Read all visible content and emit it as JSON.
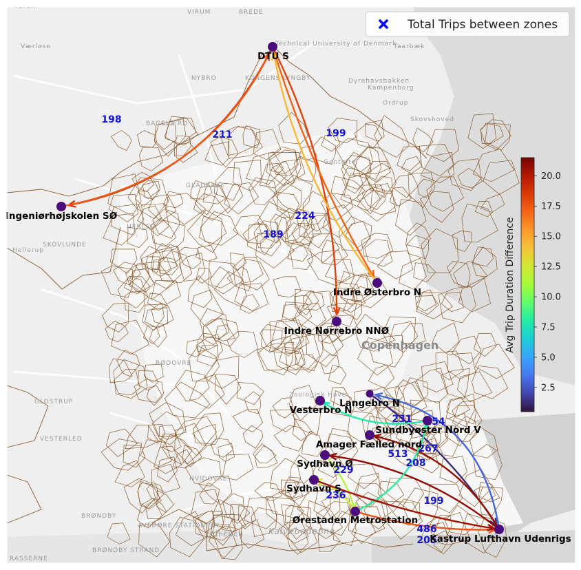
{
  "legend": {
    "label": "Total Trips between zones",
    "marker": "x-cross",
    "color": "#0000ff"
  },
  "colorbar": {
    "title": "Avg Trip Duration Difference",
    "ticks": [
      "2.5",
      "5.0",
      "7.5",
      "10.0",
      "12.5",
      "15.0",
      "17.5",
      "20.0"
    ],
    "colormap": "turbo"
  },
  "basemap_places": [
    "VIRUM",
    "BREDE",
    "Værløse",
    "Technical University of Denmark",
    "Taarbæk",
    "NYBRO",
    "KONGENS LYNGBY",
    "BAGSVÆRD",
    "Skovshoved",
    "GLADSAXE",
    "HERLEV",
    "SKOVLUNDE",
    "RØDOVRE",
    "GLOSTRUP",
    "VESTERLED",
    "BRØNDBY",
    "AVEDØRE STATIONSBY",
    "FRIHEDEN",
    "BRØNDBY STRAND",
    "Kalvebodерne",
    "Copenhagen",
    "Zoologisk Have",
    "Hellerup",
    "HVIDOVRE",
    "RASSERNE",
    "Gentofte",
    "Ordrup",
    "Dyrehavsbakken",
    "Farum",
    "Kampenborg"
  ],
  "zones": [
    {
      "id": "dtu",
      "label": "DTU S"
    },
    {
      "id": "ing",
      "label": "Ingeniørhøjskolen SØ"
    },
    {
      "id": "ost",
      "label": "Indre Østerbro N"
    },
    {
      "id": "nor",
      "label": "Indre Nørrebro NNØ"
    },
    {
      "id": "lan",
      "label": "Langebro N"
    },
    {
      "id": "ves",
      "label": "Vesterbro N"
    },
    {
      "id": "sun",
      "label": "Sundbyøster Nord V"
    },
    {
      "id": "ama",
      "label": "Amager Fælled nord"
    },
    {
      "id": "syo",
      "label": "Sydhavn Ø"
    },
    {
      "id": "sys",
      "label": "Sydhavn S"
    },
    {
      "id": "ore",
      "label": "Ørestaden Metrostation"
    },
    {
      "id": "kas",
      "label": "Kastrup Lufthavn Udenrigs"
    }
  ],
  "trips": [
    {
      "from": "dtu",
      "to": "ing",
      "trips": "198",
      "diff": 18.9
    },
    {
      "from": "ing",
      "to": "dtu",
      "trips": "211",
      "diff": 17.3
    },
    {
      "from": "dtu",
      "to": "nor",
      "trips": "189",
      "diff": 18.2
    },
    {
      "from": "dtu",
      "to": "ost",
      "trips": "224",
      "diff": 17.0
    },
    {
      "from": "ost",
      "to": "dtu",
      "trips": "199",
      "diff": 14.5
    },
    {
      "from": "kas",
      "to": "lan",
      "trips": "254",
      "diff": 3.0
    },
    {
      "from": "lan",
      "to": "kas",
      "trips": "199",
      "diff": 1.2
    },
    {
      "from": "sun",
      "to": "ves",
      "trips": "231",
      "diff": 7.8
    },
    {
      "from": "kas",
      "to": "ama",
      "trips": "267",
      "diff": 20.8
    },
    {
      "from": "kas",
      "to": "syo",
      "trips": "513",
      "diff": 20.9
    },
    {
      "from": "ore",
      "to": "sun",
      "trips": "208",
      "diff": 8.2
    },
    {
      "from": "syo",
      "to": "ore",
      "trips": "229",
      "diff": 11.5
    },
    {
      "from": "ore",
      "to": "sys",
      "trips": "236",
      "diff": 12.3
    },
    {
      "from": "ore",
      "to": "kas",
      "trips": "486",
      "diff": 17.6
    },
    {
      "from": "sys",
      "to": "kas",
      "trips": "205",
      "diff": 20.4
    }
  ]
}
